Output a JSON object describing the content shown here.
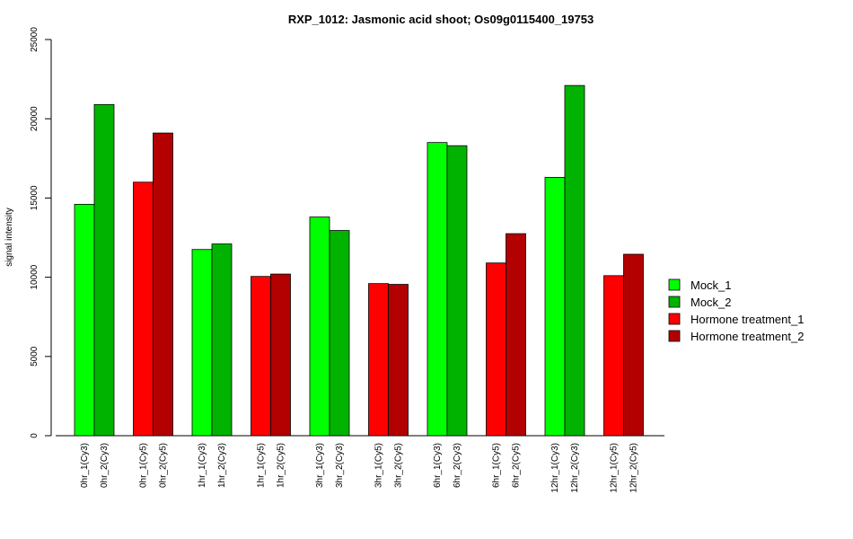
{
  "chart_data": {
    "type": "bar",
    "title": "RXP_1012: Jasmonic acid shoot; Os09g0115400_19753",
    "ylabel": "signal intensity",
    "xlabel": "",
    "ylim": [
      0,
      25000
    ],
    "yticks": [
      0,
      5000,
      10000,
      15000,
      20000,
      25000
    ],
    "groups": [
      {
        "labels": [
          "0hr_1(Cy3)",
          "0hr_2(Cy3)"
        ],
        "values": [
          14600,
          20900
        ],
        "series": [
          "Mock_1",
          "Mock_2"
        ]
      },
      {
        "labels": [
          "0hr_1(Cy5)",
          "0hr_2(Cy5)"
        ],
        "values": [
          16000,
          19100
        ],
        "series": [
          "Hormone treatment_1",
          "Hormone treatment_2"
        ]
      },
      {
        "labels": [
          "1hr_1(Cy3)",
          "1hr_2(Cy3)"
        ],
        "values": [
          11750,
          12100
        ],
        "series": [
          "Mock_1",
          "Mock_2"
        ]
      },
      {
        "labels": [
          "1hr_1(Cy5)",
          "1hr_2(Cy5)"
        ],
        "values": [
          10050,
          10200
        ],
        "series": [
          "Hormone treatment_1",
          "Hormone treatment_2"
        ]
      },
      {
        "labels": [
          "3hr_1(Cy3)",
          "3hr_2(Cy3)"
        ],
        "values": [
          13800,
          12950
        ],
        "series": [
          "Mock_1",
          "Mock_2"
        ]
      },
      {
        "labels": [
          "3hr_1(Cy5)",
          "3hr_2(Cy5)"
        ],
        "values": [
          9600,
          9550
        ],
        "series": [
          "Hormone treatment_1",
          "Hormone treatment_2"
        ]
      },
      {
        "labels": [
          "6hr_1(Cy3)",
          "6hr_2(Cy3)"
        ],
        "values": [
          18500,
          18300
        ],
        "series": [
          "Mock_1",
          "Mock_2"
        ]
      },
      {
        "labels": [
          "6hr_1(Cy5)",
          "6hr_2(Cy5)"
        ],
        "values": [
          10900,
          12750
        ],
        "series": [
          "Hormone treatment_1",
          "Hormone treatment_2"
        ]
      },
      {
        "labels": [
          "12hr_1(Cy3)",
          "12hr_2(Cy3)"
        ],
        "values": [
          16300,
          22100
        ],
        "series": [
          "Mock_1",
          "Mock_2"
        ]
      },
      {
        "labels": [
          "12hr_1(Cy5)",
          "12hr_2(Cy5)"
        ],
        "values": [
          10100,
          11450
        ],
        "series": [
          "Hormone treatment_1",
          "Hormone treatment_2"
        ]
      }
    ],
    "legend": {
      "position": "right",
      "entries": [
        {
          "name": "Mock_1",
          "color": "#00ff00"
        },
        {
          "name": "Mock_2",
          "color": "#00b300"
        },
        {
          "name": "Hormone treatment_1",
          "color": "#ff0000"
        },
        {
          "name": "Hormone treatment_2",
          "color": "#b30000"
        }
      ]
    },
    "grid": false
  }
}
